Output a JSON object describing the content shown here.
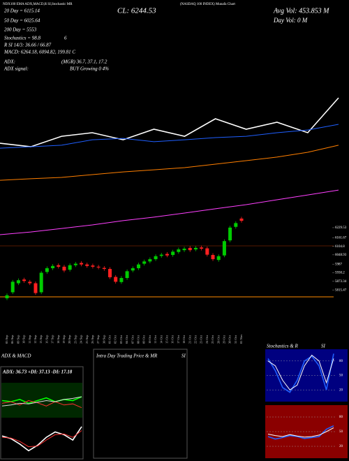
{
  "header": {
    "top_left": "NDX100 EMA ADX,MACD,R SI,Stochastic MR",
    "top_mid": "(NASDAQ 100 INDEX) Munafa Chart",
    "ema20": "20 Day = 6115.14",
    "close": "CL: 6244.53",
    "avg_vol": "Avg Vol: 453.853 M",
    "ema50": "50 Day = 6025.64",
    "day_vol": "Day Vol: 0  M",
    "ema200": "200 Day = 5553",
    "stoch": "Stochastics = 98.8",
    "stoch_b": "6",
    "rsi": "R  SI 14/3: 36.66 / 66.87",
    "macd": "MACD: 6264.18, 6094.82, 199.81 C",
    "adx": "ADX:",
    "adx_mgr": "(MGR) 36.7, 37.1, 17.2",
    "adx_signal": "ADX  signal:",
    "adx_buy": "BUY Growing 0 4%",
    "intraday": "Intra Day Trading Price  & MR",
    "intraday_si": "SI"
  },
  "chart_data": [
    {
      "type": "candlestick",
      "categories": [
        "05 Sep",
        "06 Sep",
        "09 Sep",
        "10 Sep",
        "11 Sep",
        "12 Sep",
        "13 Sep",
        "16 Sep",
        "17 Sep",
        "18 Sep",
        "19 Sep",
        "20 Sep",
        "23 Sep",
        "24 Sep",
        "25 Sep",
        "26 Sep",
        "27 Sep",
        "30 Sep",
        "01 Oct",
        "02 Oct",
        "03 Oct",
        "04 Oct",
        "07 Oct",
        "08 Oct",
        "09 Oct",
        "10 Oct",
        "11 Oct",
        "14 Oct",
        "15 Oct",
        "16 Oct",
        "17 Oct",
        "18 Oct",
        "21 Oct",
        "22 Oct",
        "23 Oct",
        "24 Oct",
        "25 Oct",
        "28 Oct",
        "29 Oct",
        "30 Oct",
        "31 Oct",
        "01 Nov"
      ],
      "open": [
        5760,
        5800,
        5860,
        5885,
        5870,
        5860,
        5800,
        5935,
        5960,
        5980,
        5970,
        5950,
        5980,
        5995,
        5985,
        5978,
        5970,
        5962,
        5955,
        5902,
        5868,
        5895,
        5945,
        5960,
        5990,
        6005,
        6020,
        6042,
        6055,
        6048,
        6068,
        6080,
        6095,
        6085,
        6098,
        6092,
        6048,
        6015,
        6045,
        6145,
        6235,
        6290
      ],
      "high": [
        5792,
        5882,
        5892,
        5897,
        5882,
        5872,
        5942,
        5972,
        5987,
        5992,
        5982,
        5992,
        6002,
        6007,
        5997,
        5990,
        5982,
        5974,
        5967,
        5914,
        5907,
        5952,
        5972,
        5997,
        6017,
        6032,
        6052,
        6062,
        6067,
        6082,
        6097,
        6102,
        6107,
        6107,
        6110,
        6104,
        6060,
        6052,
        6152,
        6242,
        6272,
        6302
      ],
      "low": [
        5748,
        5788,
        5848,
        5863,
        5848,
        5783,
        5788,
        5923,
        5948,
        5958,
        5933,
        5938,
        5968,
        5973,
        5963,
        5958,
        5953,
        5943,
        5888,
        5858,
        5856,
        5883,
        5933,
        5948,
        5978,
        5993,
        6008,
        6030,
        6033,
        6036,
        6056,
        6068,
        6068,
        6073,
        6078,
        6038,
        6008,
        6003,
        6033,
        6133,
        6223,
        6263
      ],
      "close": [
        5780,
        5870,
        5880,
        5875,
        5860,
        5795,
        5930,
        5960,
        5975,
        5970,
        5945,
        5980,
        5990,
        5985,
        5975,
        5970,
        5965,
        5955,
        5900,
        5870,
        5895,
        5940,
        5960,
        5985,
        6005,
        6020,
        6040,
        6050,
        6045,
        6070,
        6085,
        6090,
        6080,
        6095,
        6090,
        6050,
        6020,
        6040,
        6140,
        6230,
        6260,
        6275
      ],
      "up_color": "#00cc00",
      "down_color": "#ff2020",
      "ylim": [
        5700,
        6350
      ],
      "yticks": [
        6229.53,
        6161.67,
        6104.8,
        6048.93,
        5987,
        5930.2,
        5873.34,
        5815.47
      ]
    },
    {
      "type": "line",
      "ylim": [
        5300,
        6400
      ],
      "series": [
        {
          "color": "#ffffff",
          "values": [
            6010,
            5987,
            6056,
            6079,
            6033,
            6102,
            6056,
            6171,
            6102,
            6148,
            6079,
            6308
          ]
        },
        {
          "color": "#1f5fff",
          "values": [
            5978,
            5987,
            5997,
            6033,
            6042,
            6020,
            6033,
            6047,
            6056,
            6079,
            6097,
            6134
          ]
        },
        {
          "color": "#ff7f00",
          "values": [
            5767,
            5777,
            5786,
            5804,
            5822,
            5836,
            5850,
            5873,
            5896,
            5919,
            5951,
            5997
          ]
        },
        {
          "color": "#ff40ff",
          "values": [
            5410,
            5428,
            5451,
            5474,
            5502,
            5525,
            5552,
            5580,
            5607,
            5639,
            5671,
            5703
          ]
        }
      ]
    },
    {
      "type": "line",
      "title": "ADX  & MACD",
      "subtitle": "ADX: 36.73 +DI: 37.13 -DI: 17.18",
      "ylim": [
        0,
        60
      ],
      "series": [
        {
          "color": "#00ff00",
          "values": [
            30,
            28,
            32,
            25,
            30,
            35,
            28,
            32,
            30,
            37
          ]
        },
        {
          "color": "#ff3030",
          "values": [
            25,
            28,
            22,
            30,
            26,
            20,
            28,
            22,
            24,
            17
          ]
        },
        {
          "color": "#dddddd",
          "values": [
            20,
            22,
            25,
            24,
            27,
            30,
            28,
            32,
            34,
            37
          ]
        }
      ]
    },
    {
      "type": "line",
      "ylim": [
        -100,
        150
      ],
      "series": [
        {
          "color": "#ffffff",
          "values": [
            50,
            30,
            -10,
            -60,
            -20,
            40,
            80,
            60,
            20,
            120
          ]
        },
        {
          "color": "#ff3030",
          "values": [
            40,
            35,
            10,
            -30,
            -25,
            20,
            60,
            65,
            40,
            90
          ]
        }
      ]
    },
    {
      "type": "line",
      "title": "Stochastics & R",
      "subtitle": "SI",
      "ylim": [
        0,
        100
      ],
      "yticks": [
        20,
        50,
        80
      ],
      "series": [
        {
          "color": "#2060ff",
          "values": [
            85,
            60,
            25,
            15,
            40,
            80,
            90,
            70,
            20,
            95
          ]
        },
        {
          "color": "#ffffff",
          "values": [
            80,
            70,
            40,
            20,
            30,
            70,
            92,
            80,
            35,
            85
          ]
        }
      ]
    },
    {
      "type": "line",
      "ylim": [
        0,
        100
      ],
      "yticks": [
        20,
        50,
        80
      ],
      "series": [
        {
          "color": "#2060ff",
          "values": [
            40,
            35,
            38,
            42,
            40,
            36,
            38,
            40,
            55,
            62
          ]
        },
        {
          "color": "#ffffff",
          "values": [
            45,
            42,
            40,
            44,
            41,
            39,
            40,
            43,
            50,
            58
          ]
        }
      ]
    }
  ]
}
